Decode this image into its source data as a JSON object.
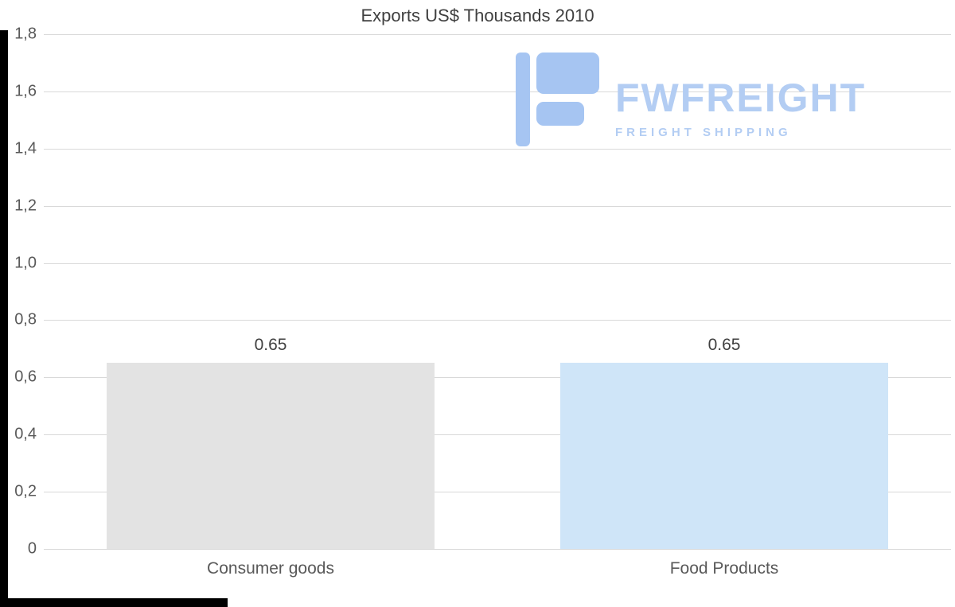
{
  "chart_data": {
    "type": "bar",
    "title": "Exports US$ Thousands 2010",
    "categories": [
      "Consumer goods",
      "Food Products"
    ],
    "values": [
      0.65,
      0.65
    ],
    "value_labels": [
      "0.65",
      "0.65"
    ],
    "bar_colors": [
      "#e3e3e3",
      "#cfe5f8"
    ],
    "ylim": [
      0,
      1.8
    ],
    "ytick_step": 0.2,
    "ytick_labels": [
      "1,8",
      "1,6",
      "1,4",
      "1,2",
      "1,0",
      "0,8",
      "0,6",
      "0,4",
      "0,2",
      "0"
    ],
    "grid": true,
    "gridline_color": "#d9d9d9",
    "legend": "none",
    "xlabel": "",
    "ylabel": ""
  },
  "watermark": {
    "brand": "FWFREIGHT",
    "tagline": "FREIGHT SHIPPING",
    "text_color": "#b3cdf3",
    "logo_color": "#a6c5f2"
  },
  "frame": {
    "edge_color": "#000000"
  },
  "text_colors": {
    "title": "#404040",
    "axis": "#595959",
    "value_label": "#404040"
  }
}
